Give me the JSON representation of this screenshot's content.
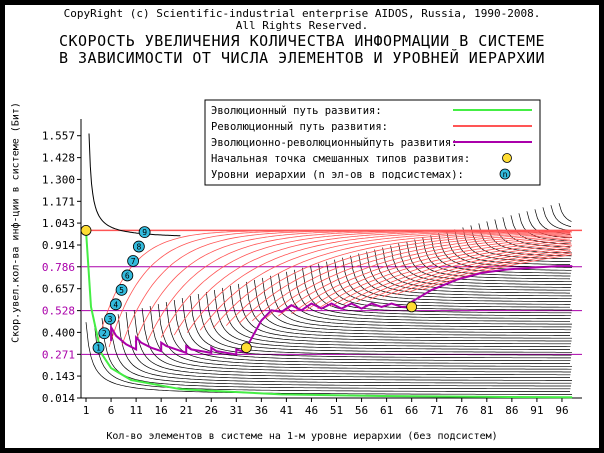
{
  "header": {
    "copyright_line1": "CopyRight (c) Scientific-industrial enterprise AIDOS, Russia, 1990-2008.",
    "copyright_line2": "All Rights Reserved."
  },
  "chart_data": {
    "type": "line",
    "title_line1": "СКОРОСТЬ УВЕЛИЧЕНИЯ КОЛИЧЕСТВА ИНФОРМАЦИИ В СИСТЕМЕ",
    "title_line2": "В ЗАВИСИМОСТИ ОТ ЧИСЛА ЭЛЕМЕНТОВ И УРОВНЕЙ ИЕРАРХИИ",
    "xlabel": "Кол-во элементов в системе на 1-м уровне иерархии (без подсистем)",
    "ylabel": "Скор.увел.кол-ва инф-ции в системе (Бит)",
    "x_ticks": [
      1,
      6,
      11,
      16,
      21,
      26,
      31,
      36,
      41,
      46,
      51,
      56,
      61,
      66,
      71,
      76,
      81,
      86,
      91,
      96
    ],
    "y_ticks": [
      "0.014",
      "0.143",
      "0.271",
      "0.400",
      "0.528",
      "0.657",
      "0.786",
      "0.914",
      "1.043",
      "1.171",
      "1.300",
      "1.428",
      "1.557"
    ],
    "y_highlight": [
      "0.271",
      "0.528",
      "0.786"
    ],
    "xlim": [
      0,
      100
    ],
    "ylim": [
      0.014,
      1.62
    ],
    "grid": false,
    "legend_position": "top-left",
    "legend": [
      {
        "label": "Эволюционный   путь развития:",
        "marker": "line",
        "color": "#44ee44"
      },
      {
        "label": "Революционный  путь развития:",
        "marker": "line",
        "color": "#ff5555"
      },
      {
        "label": "Эволюционно-революционныйпуть развития:",
        "marker": "line",
        "color": "#aa00aa"
      },
      {
        "label": "Начальная точка смешанных типов развития:",
        "marker": "point",
        "color": "#ffdd33"
      },
      {
        "label": "Уровни иерархии (n эл-ов в подсистемах):",
        "marker": "circle",
        "color": "#33bbdd",
        "symbol": "n"
      }
    ],
    "hierarchy_levels": [
      "1",
      "2",
      "3",
      "4",
      "5",
      "6",
      "7",
      "8",
      "9"
    ],
    "hierarchy_curve_count": 60,
    "series": [
      {
        "name": "Эволюционный путь развития",
        "color": "#44ee44",
        "x": [
          1,
          2,
          4,
          6,
          10,
          20,
          40,
          60,
          80,
          98
        ],
        "y": [
          1.0,
          0.55,
          0.28,
          0.19,
          0.12,
          0.065,
          0.035,
          0.026,
          0.021,
          0.018
        ]
      },
      {
        "name": "Эволюционно-революционныйпуть развития",
        "color": "#aa00aa",
        "x": [
          6,
          6,
          7,
          9,
          11,
          11,
          12,
          14,
          16,
          16,
          17,
          19,
          21,
          21,
          22,
          24,
          26,
          26,
          27,
          29,
          31,
          31,
          32,
          33,
          33,
          36,
          38,
          40,
          42,
          44,
          46,
          48,
          50,
          52,
          54,
          56,
          58,
          60,
          62,
          64,
          66,
          66,
          70,
          75,
          80,
          85,
          90,
          95,
          98
        ],
        "y": [
          0.35,
          0.43,
          0.38,
          0.33,
          0.3,
          0.37,
          0.34,
          0.31,
          0.29,
          0.34,
          0.32,
          0.3,
          0.28,
          0.32,
          0.3,
          0.29,
          0.28,
          0.31,
          0.29,
          0.28,
          0.27,
          0.3,
          0.29,
          0.28,
          0.31,
          0.47,
          0.53,
          0.52,
          0.56,
          0.53,
          0.57,
          0.54,
          0.57,
          0.54,
          0.57,
          0.54,
          0.57,
          0.55,
          0.57,
          0.55,
          0.55,
          0.58,
          0.65,
          0.71,
          0.75,
          0.77,
          0.78,
          0.79,
          0.79
        ]
      }
    ],
    "mixed_start_points": [
      {
        "x": 1,
        "y": 1.0
      },
      {
        "x": 33,
        "y": 0.31
      },
      {
        "x": 66,
        "y": 0.55
      }
    ]
  }
}
